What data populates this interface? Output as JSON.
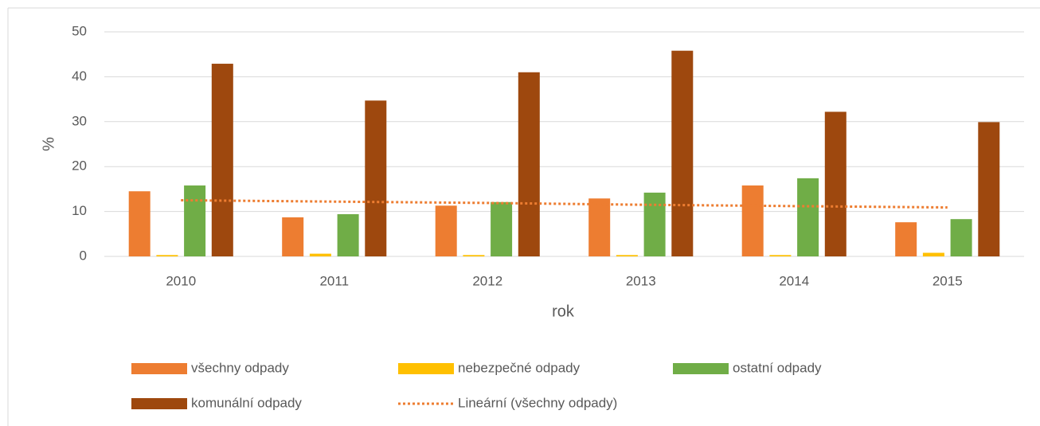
{
  "chart_data": {
    "type": "bar",
    "x_label": "rok",
    "y_label": "%",
    "categories": [
      "2010",
      "2011",
      "2012",
      "2013",
      "2014",
      "2015"
    ],
    "series": [
      {
        "name": "všechny odpady",
        "color": "#ed7d31",
        "values": [
          14.5,
          8.7,
          11.3,
          12.9,
          15.8,
          7.6
        ]
      },
      {
        "name": "nebezpečné odpady",
        "color": "#ffc000",
        "values": [
          0.3,
          0.6,
          0.3,
          0.3,
          0.3,
          0.8
        ]
      },
      {
        "name": "ostatní odpady",
        "color": "#70ad47",
        "values": [
          15.8,
          9.4,
          12.1,
          14.2,
          17.4,
          8.3
        ]
      },
      {
        "name": "komunální odpady",
        "color": "#9e480e",
        "values": [
          42.9,
          34.7,
          41.0,
          45.8,
          32.2,
          29.9
        ]
      },
      {
        "name": "Lineární (všechny odpady)",
        "color": "#ed7d31",
        "type": "line",
        "style": "dotted",
        "values": [
          12.5,
          12.2,
          11.9,
          11.5,
          11.2,
          10.9
        ]
      }
    ],
    "ylim": [
      0,
      50
    ],
    "yticks": [
      0,
      10,
      20,
      30,
      40,
      50
    ],
    "grid": true,
    "legend": "bottom"
  }
}
